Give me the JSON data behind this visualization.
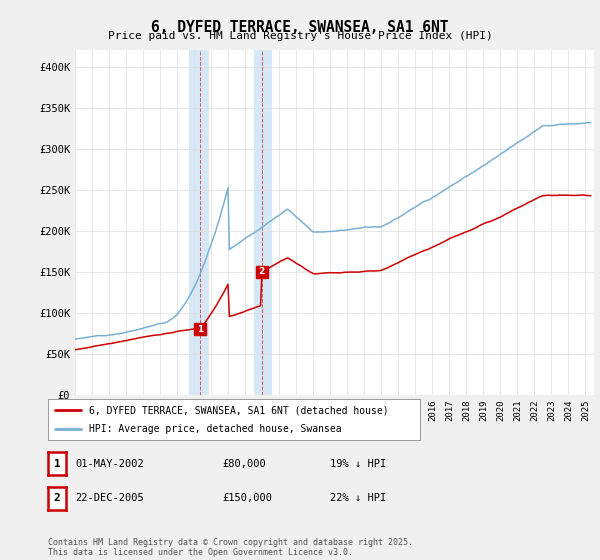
{
  "title": "6, DYFED TERRACE, SWANSEA, SA1 6NT",
  "subtitle": "Price paid vs. HM Land Registry's House Price Index (HPI)",
  "property_color": "#cc0000",
  "hpi_color": "#7ab0d4",
  "shade_color": "#d6e8f5",
  "background_color": "#f0f0f0",
  "plot_bg_color": "#ffffff",
  "ylim": [
    0,
    420000
  ],
  "yticks": [
    0,
    50000,
    100000,
    150000,
    200000,
    250000,
    300000,
    350000,
    400000
  ],
  "ytick_labels": [
    "£0",
    "£50K",
    "£100K",
    "£150K",
    "£200K",
    "£250K",
    "£300K",
    "£350K",
    "£400K"
  ],
  "sale1_date_num": 2002.33,
  "sale1_price": 80000,
  "sale2_date_num": 2005.97,
  "sale2_price": 150000,
  "shade1_start": 2001.7,
  "shade1_end": 2002.9,
  "shade2_start": 2005.5,
  "shade2_end": 2006.6,
  "legend_property": "6, DYFED TERRACE, SWANSEA, SA1 6NT (detached house)",
  "legend_hpi": "HPI: Average price, detached house, Swansea",
  "table_row1": [
    "1",
    "01-MAY-2002",
    "£80,000",
    "19% ↓ HPI"
  ],
  "table_row2": [
    "2",
    "22-DEC-2005",
    "£150,000",
    "22% ↓ HPI"
  ],
  "footer": "Contains HM Land Registry data © Crown copyright and database right 2025.\nThis data is licensed under the Open Government Licence v3.0.",
  "xmin": 1995.0,
  "xmax": 2025.5,
  "figwidth": 6.0,
  "figheight": 5.6,
  "dpi": 100
}
